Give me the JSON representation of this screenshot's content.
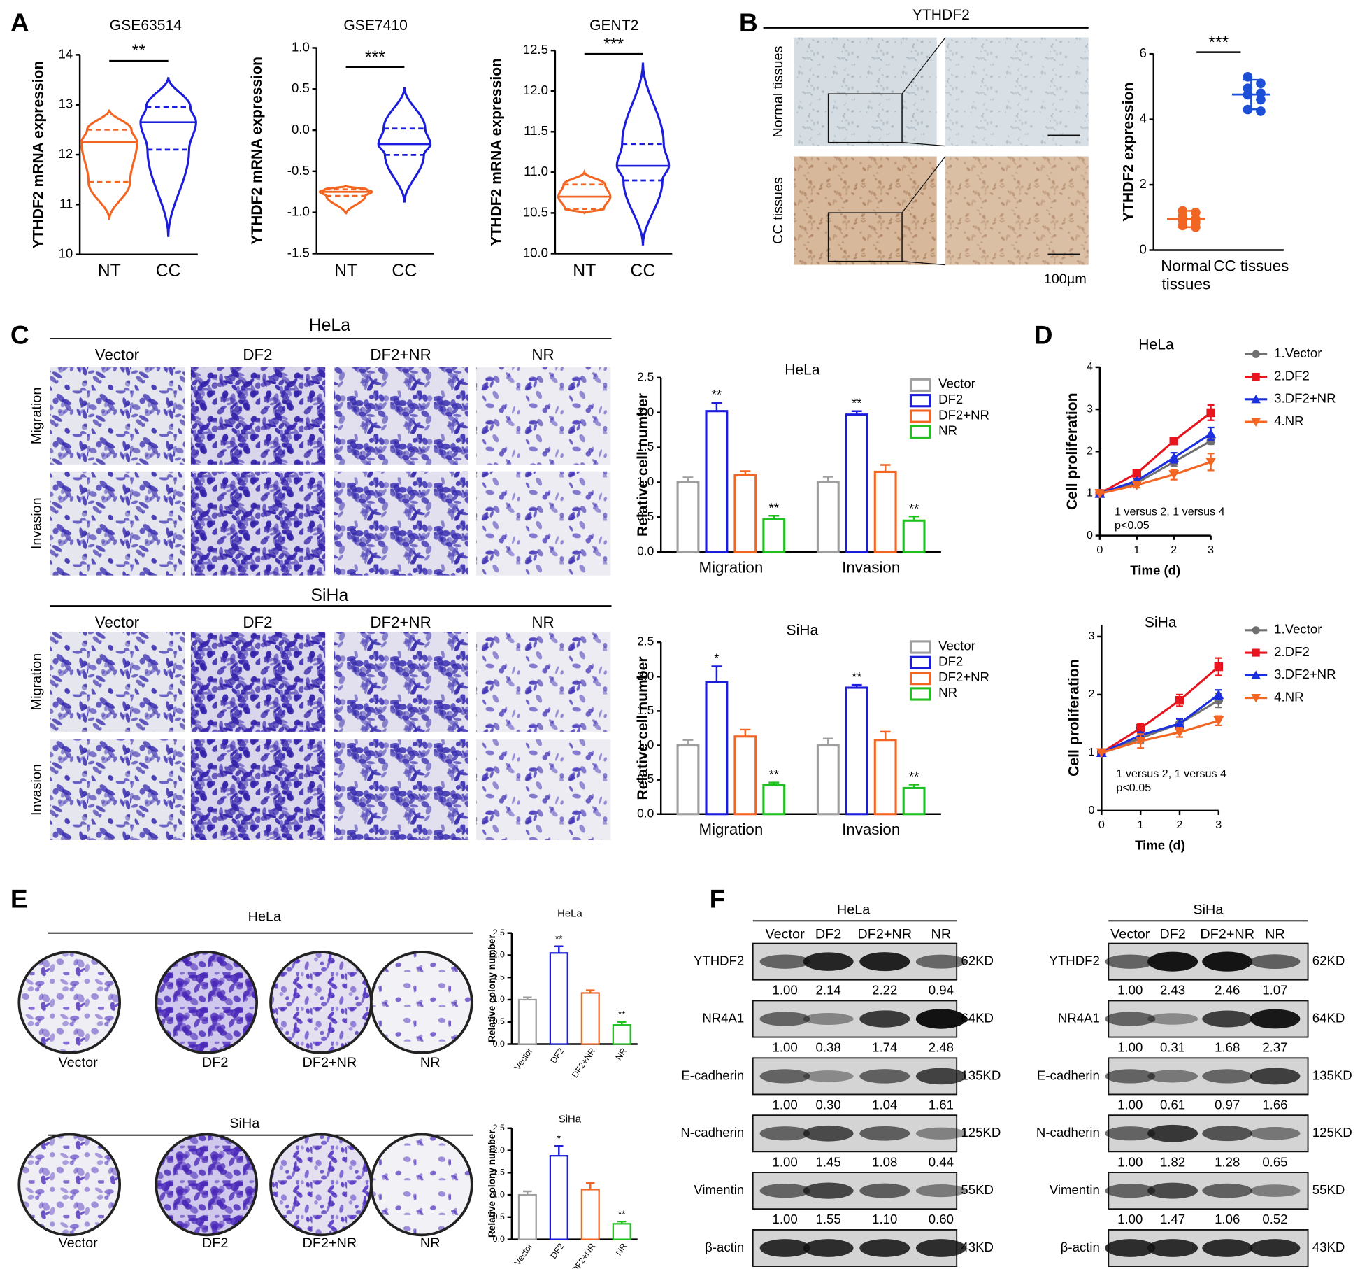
{
  "panel_labels": [
    "A",
    "B",
    "C",
    "D",
    "E",
    "F"
  ],
  "histology": {
    "title": "YTHDF2",
    "rows": [
      "Normal tissues",
      "CC tissues"
    ],
    "scale": "100µm"
  },
  "transwell": [
    {
      "title": "HeLa",
      "columns": [
        "Vector",
        "DF2",
        "DF2+NR",
        "NR"
      ],
      "rows": [
        "Migration",
        "Invasion"
      ]
    },
    {
      "title": "SiHa",
      "columns": [
        "Vector",
        "DF2",
        "DF2+NR",
        "NR"
      ],
      "rows": [
        "Migration",
        "Invasion"
      ]
    }
  ],
  "colony": [
    {
      "title": "HeLa",
      "columns": [
        "Vector",
        "DF2",
        "DF2+NR",
        "NR"
      ]
    },
    {
      "title": "SiHa",
      "columns": [
        "Vector",
        "DF2",
        "DF2+NR",
        "NR"
      ]
    }
  ],
  "chart_data": [
    {
      "type": "violin",
      "title": "GSE63514",
      "ylabel": "YTHDF2 mRNA expression",
      "categories": [
        "NT",
        "CC"
      ],
      "colors": [
        "#f26522",
        "#1c1cdb"
      ],
      "min": [
        10.7,
        10.35
      ],
      "q1": [
        11.45,
        12.1
      ],
      "median": [
        12.25,
        12.65
      ],
      "q3": [
        12.5,
        12.95
      ],
      "max": [
        12.9,
        13.55
      ],
      "ylim": [
        10,
        14
      ],
      "yticks": [
        10,
        11,
        12,
        13,
        14
      ],
      "annotation": "**"
    },
    {
      "type": "violin",
      "title": "GSE7410",
      "ylabel": "YTHDF2 mRNA expression",
      "categories": [
        "NT",
        "CC"
      ],
      "colors": [
        "#f26522",
        "#1c1cdb"
      ],
      "min": [
        -1.02,
        -0.88
      ],
      "q1": [
        -0.8,
        -0.3
      ],
      "median": [
        -0.75,
        -0.17
      ],
      "q3": [
        -0.72,
        0.02
      ],
      "max": [
        -0.68,
        0.52
      ],
      "ylim": [
        -1.5,
        1.0
      ],
      "yticks": [
        -1.5,
        {
          "value": -1,
          "label": "-1.0"
        },
        -0.5,
        {
          "value": 0,
          "label": "0.0"
        },
        0.5,
        {
          "value": 1,
          "label": "1.0"
        }
      ],
      "annotation": "***"
    },
    {
      "type": "violin",
      "title": "GENT2",
      "ylabel": "YTHDF2 mRNA expression",
      "categories": [
        "NT",
        "CC"
      ],
      "colors": [
        "#f26522",
        "#1c1cdb"
      ],
      "min": [
        10.5,
        10.1
      ],
      "q1": [
        10.55,
        10.9
      ],
      "median": [
        10.7,
        11.08
      ],
      "q3": [
        10.85,
        11.35
      ],
      "max": [
        11.0,
        12.35
      ],
      "ylim": [
        10.0,
        12.5
      ],
      "yticks": [
        {
          "value": 10,
          "label": "10.0"
        },
        10.5,
        {
          "value": 11,
          "label": "11.0"
        },
        11.5,
        {
          "value": 12,
          "label": "12.0"
        },
        12.5
      ],
      "annotation": "***"
    },
    {
      "type": "dot",
      "ylabel": "YTHDF2 expression",
      "categories": [
        "Normal tissues",
        "CC tissues"
      ],
      "colors": [
        "#f26522",
        "#1c4fd6"
      ],
      "values": [
        [
          1.2,
          1.15,
          1.05,
          0.95,
          0.9,
          0.85,
          0.75,
          0.7
        ],
        [
          5.3,
          5.1,
          4.95,
          4.8,
          4.75,
          4.6,
          4.3,
          4.25
        ]
      ],
      "mean": [
        0.95,
        4.76
      ],
      "sd": [
        0.25,
        0.45
      ],
      "ylim": [
        0,
        6
      ],
      "yticks": [
        0,
        2,
        4,
        6
      ],
      "annotation": "***"
    },
    {
      "type": "bar",
      "title": "HeLa",
      "ylabel": "Relative cell number",
      "categories": [
        "Migration",
        "Invasion"
      ],
      "series": [
        {
          "name": "Vector",
          "color": "#9e9e9e",
          "values": [
            1.0,
            1.0
          ],
          "errors": [
            0.07,
            0.08
          ],
          "annotations": [
            null,
            null
          ]
        },
        {
          "name": "DF2",
          "color": "#1c1cdb",
          "values": [
            2.02,
            1.97
          ],
          "errors": [
            0.12,
            0.05
          ],
          "annotations": [
            "**",
            "**"
          ]
        },
        {
          "name": "DF2+NR",
          "color": "#f26522",
          "values": [
            1.1,
            1.15
          ],
          "errors": [
            0.06,
            0.1
          ],
          "annotations": [
            null,
            null
          ]
        },
        {
          "name": "NR",
          "color": "#20c020",
          "values": [
            0.47,
            0.45
          ],
          "errors": [
            0.05,
            0.06
          ],
          "annotations": [
            "**",
            "**"
          ]
        }
      ],
      "ylim": [
        0,
        2.5
      ],
      "yticks": [
        {
          "value": 0,
          "label": "0.0"
        },
        0.5,
        {
          "value": 1,
          "label": "1.0"
        },
        1.5,
        {
          "value": 2,
          "label": "2.0"
        },
        2.5
      ]
    },
    {
      "type": "bar",
      "title": "SiHa",
      "ylabel": "Relative cell number",
      "categories": [
        "Migration",
        "Invasion"
      ],
      "series": [
        {
          "name": "Vector",
          "color": "#9e9e9e",
          "values": [
            1.0,
            1.0
          ],
          "errors": [
            0.08,
            0.1
          ],
          "annotations": [
            null,
            null
          ]
        },
        {
          "name": "DF2",
          "color": "#1c1cdb",
          "values": [
            1.92,
            1.84
          ],
          "errors": [
            0.23,
            0.04
          ],
          "annotations": [
            "*",
            "**"
          ]
        },
        {
          "name": "DF2+NR",
          "color": "#f26522",
          "values": [
            1.13,
            1.08
          ],
          "errors": [
            0.1,
            0.12
          ],
          "annotations": [
            null,
            null
          ]
        },
        {
          "name": "NR",
          "color": "#20c020",
          "values": [
            0.42,
            0.38
          ],
          "errors": [
            0.04,
            0.05
          ],
          "annotations": [
            "**",
            "**"
          ]
        }
      ],
      "ylim": [
        0,
        2.5
      ],
      "yticks": [
        {
          "value": 0,
          "label": "0.0"
        },
        0.5,
        {
          "value": 1,
          "label": "1.0"
        },
        1.5,
        {
          "value": 2,
          "label": "2.0"
        },
        2.5
      ]
    },
    {
      "type": "line",
      "title": "HeLa",
      "xlabel": "Time (d)",
      "ylabel": "Cell proliferation",
      "x": [
        0,
        1,
        2,
        3
      ],
      "xlim": [
        0,
        3
      ],
      "xticks": [
        0,
        1,
        2,
        3
      ],
      "ylim": [
        0,
        4
      ],
      "yticks": [
        0,
        1,
        2,
        3,
        4
      ],
      "note": [
        "1 versus 2, 1 versus 4",
        "p<0.05"
      ],
      "series": [
        {
          "name": "1.Vector",
          "color": "#707070",
          "marker": "circle",
          "values": [
            1,
            1.25,
            1.75,
            2.25
          ],
          "errors": [
            0,
            0.05,
            0.1,
            0.08
          ]
        },
        {
          "name": "2.DF2",
          "color": "#e8141e",
          "marker": "square",
          "values": [
            1,
            1.48,
            2.25,
            2.92
          ],
          "errors": [
            0,
            0.05,
            0.04,
            0.18
          ]
        },
        {
          "name": "3.DF2+NR",
          "color": "#1c2fe0",
          "marker": "triangle-up",
          "values": [
            1,
            1.3,
            1.85,
            2.42
          ],
          "errors": [
            0,
            0.05,
            0.12,
            0.15
          ]
        },
        {
          "name": "4.NR",
          "color": "#f26522",
          "marker": "triangle-down",
          "values": [
            1,
            1.2,
            1.45,
            1.75
          ],
          "errors": [
            0,
            0.06,
            0.12,
            0.2
          ]
        }
      ]
    },
    {
      "type": "line",
      "title": "SiHa",
      "xlabel": "Time (d)",
      "ylabel": "Cell proliferation",
      "x": [
        0,
        1,
        2,
        3
      ],
      "xlim": [
        0,
        3
      ],
      "xticks": [
        0,
        1,
        2,
        3
      ],
      "ylim": [
        0,
        3.2
      ],
      "yticks": [
        0,
        1,
        2,
        3
      ],
      "note": [
        "1 versus 2, 1 versus 4",
        "p<0.05"
      ],
      "series": [
        {
          "name": "1.Vector",
          "color": "#707070",
          "marker": "circle",
          "values": [
            1,
            1.25,
            1.5,
            1.9
          ],
          "errors": [
            0,
            0.08,
            0.08,
            0.12
          ]
        },
        {
          "name": "2.DF2",
          "color": "#e8141e",
          "marker": "square",
          "values": [
            1,
            1.42,
            1.9,
            2.48
          ],
          "errors": [
            0,
            0.08,
            0.1,
            0.15
          ]
        },
        {
          "name": "3.DF2+NR",
          "color": "#1c2fe0",
          "marker": "triangle-up",
          "values": [
            1,
            1.3,
            1.5,
            2.0
          ],
          "errors": [
            0,
            0.05,
            0.08,
            0.08
          ]
        },
        {
          "name": "4.NR",
          "color": "#f26522",
          "marker": "triangle-down",
          "values": [
            1,
            1.2,
            1.35,
            1.55
          ],
          "errors": [
            0,
            0.12,
            0.08,
            0.08
          ]
        }
      ]
    },
    {
      "type": "bar",
      "title": "HeLa",
      "ylabel": "Relative colony number",
      "categories": [
        "Vector",
        "DF2",
        "DF2+NR",
        "NR"
      ],
      "colors": [
        "#9e9e9e",
        "#1c1cdb",
        "#f26522",
        "#20c020"
      ],
      "values": [
        1.0,
        2.05,
        1.15,
        0.43
      ],
      "errors": [
        0.05,
        0.15,
        0.06,
        0.07
      ],
      "annotations": [
        null,
        "**",
        null,
        "**"
      ],
      "ylim": [
        0,
        2.5
      ],
      "yticks": [
        {
          "value": 0,
          "label": "0.0"
        },
        0.5,
        {
          "value": 1,
          "label": "1.0"
        },
        1.5,
        {
          "value": 2,
          "label": "2.0"
        },
        2.5
      ]
    },
    {
      "type": "bar",
      "title": "SiHa",
      "ylabel": "Relative colony number",
      "categories": [
        "Vector",
        "DF2",
        "DF2+NR",
        "NR"
      ],
      "colors": [
        "#9e9e9e",
        "#1c1cdb",
        "#f26522",
        "#20c020"
      ],
      "values": [
        1.0,
        1.88,
        1.12,
        0.35
      ],
      "errors": [
        0.08,
        0.22,
        0.15,
        0.05
      ],
      "annotations": [
        null,
        "*",
        null,
        "**"
      ],
      "ylim": [
        0,
        2.5
      ],
      "yticks": [
        {
          "value": 0,
          "label": "0.0"
        },
        0.5,
        {
          "value": 1,
          "label": "1.0"
        },
        1.5,
        {
          "value": 2,
          "label": "2.0"
        },
        2.5
      ]
    }
  ],
  "western_blots": [
    {
      "title": "HeLa",
      "lanes": [
        "Vector",
        "DF2",
        "DF2+NR",
        "NR"
      ],
      "rows": [
        {
          "protein": "YTHDF2",
          "size": "62KD",
          "values": [
            "1.00",
            "2.14",
            "2.22",
            "0.94"
          ]
        },
        {
          "protein": "NR4A1",
          "size": "64KD",
          "values": [
            "1.00",
            "0.38",
            "1.74",
            "2.48"
          ]
        },
        {
          "protein": "E-cadherin",
          "size": "135KD",
          "values": [
            "1.00",
            "0.30",
            "1.04",
            "1.61"
          ]
        },
        {
          "protein": "N-cadherin",
          "size": "125KD",
          "values": [
            "1.00",
            "1.45",
            "1.08",
            "0.44"
          ]
        },
        {
          "protein": "Vimentin",
          "size": "55KD",
          "values": [
            "1.00",
            "1.55",
            "1.10",
            "0.60"
          ]
        },
        {
          "protein": "β-actin",
          "size": "43KD"
        }
      ]
    },
    {
      "title": "SiHa",
      "lanes": [
        "Vector",
        "DF2",
        "DF2+NR",
        "NR"
      ],
      "rows": [
        {
          "protein": "YTHDF2",
          "size": "62KD",
          "values": [
            "1.00",
            "2.43",
            "2.46",
            "1.07"
          ]
        },
        {
          "protein": "NR4A1",
          "size": "64KD",
          "values": [
            "1.00",
            "0.31",
            "1.68",
            "2.37"
          ]
        },
        {
          "protein": "E-cadherin",
          "size": "135KD",
          "values": [
            "1.00",
            "0.61",
            "0.97",
            "1.66"
          ]
        },
        {
          "protein": "N-cadherin",
          "size": "125KD",
          "values": [
            "1.00",
            "1.82",
            "1.28",
            "0.65"
          ]
        },
        {
          "protein": "Vimentin",
          "size": "55KD",
          "values": [
            "1.00",
            "1.47",
            "1.06",
            "0.52"
          ]
        },
        {
          "protein": "β-actin",
          "size": "43KD"
        }
      ]
    }
  ]
}
